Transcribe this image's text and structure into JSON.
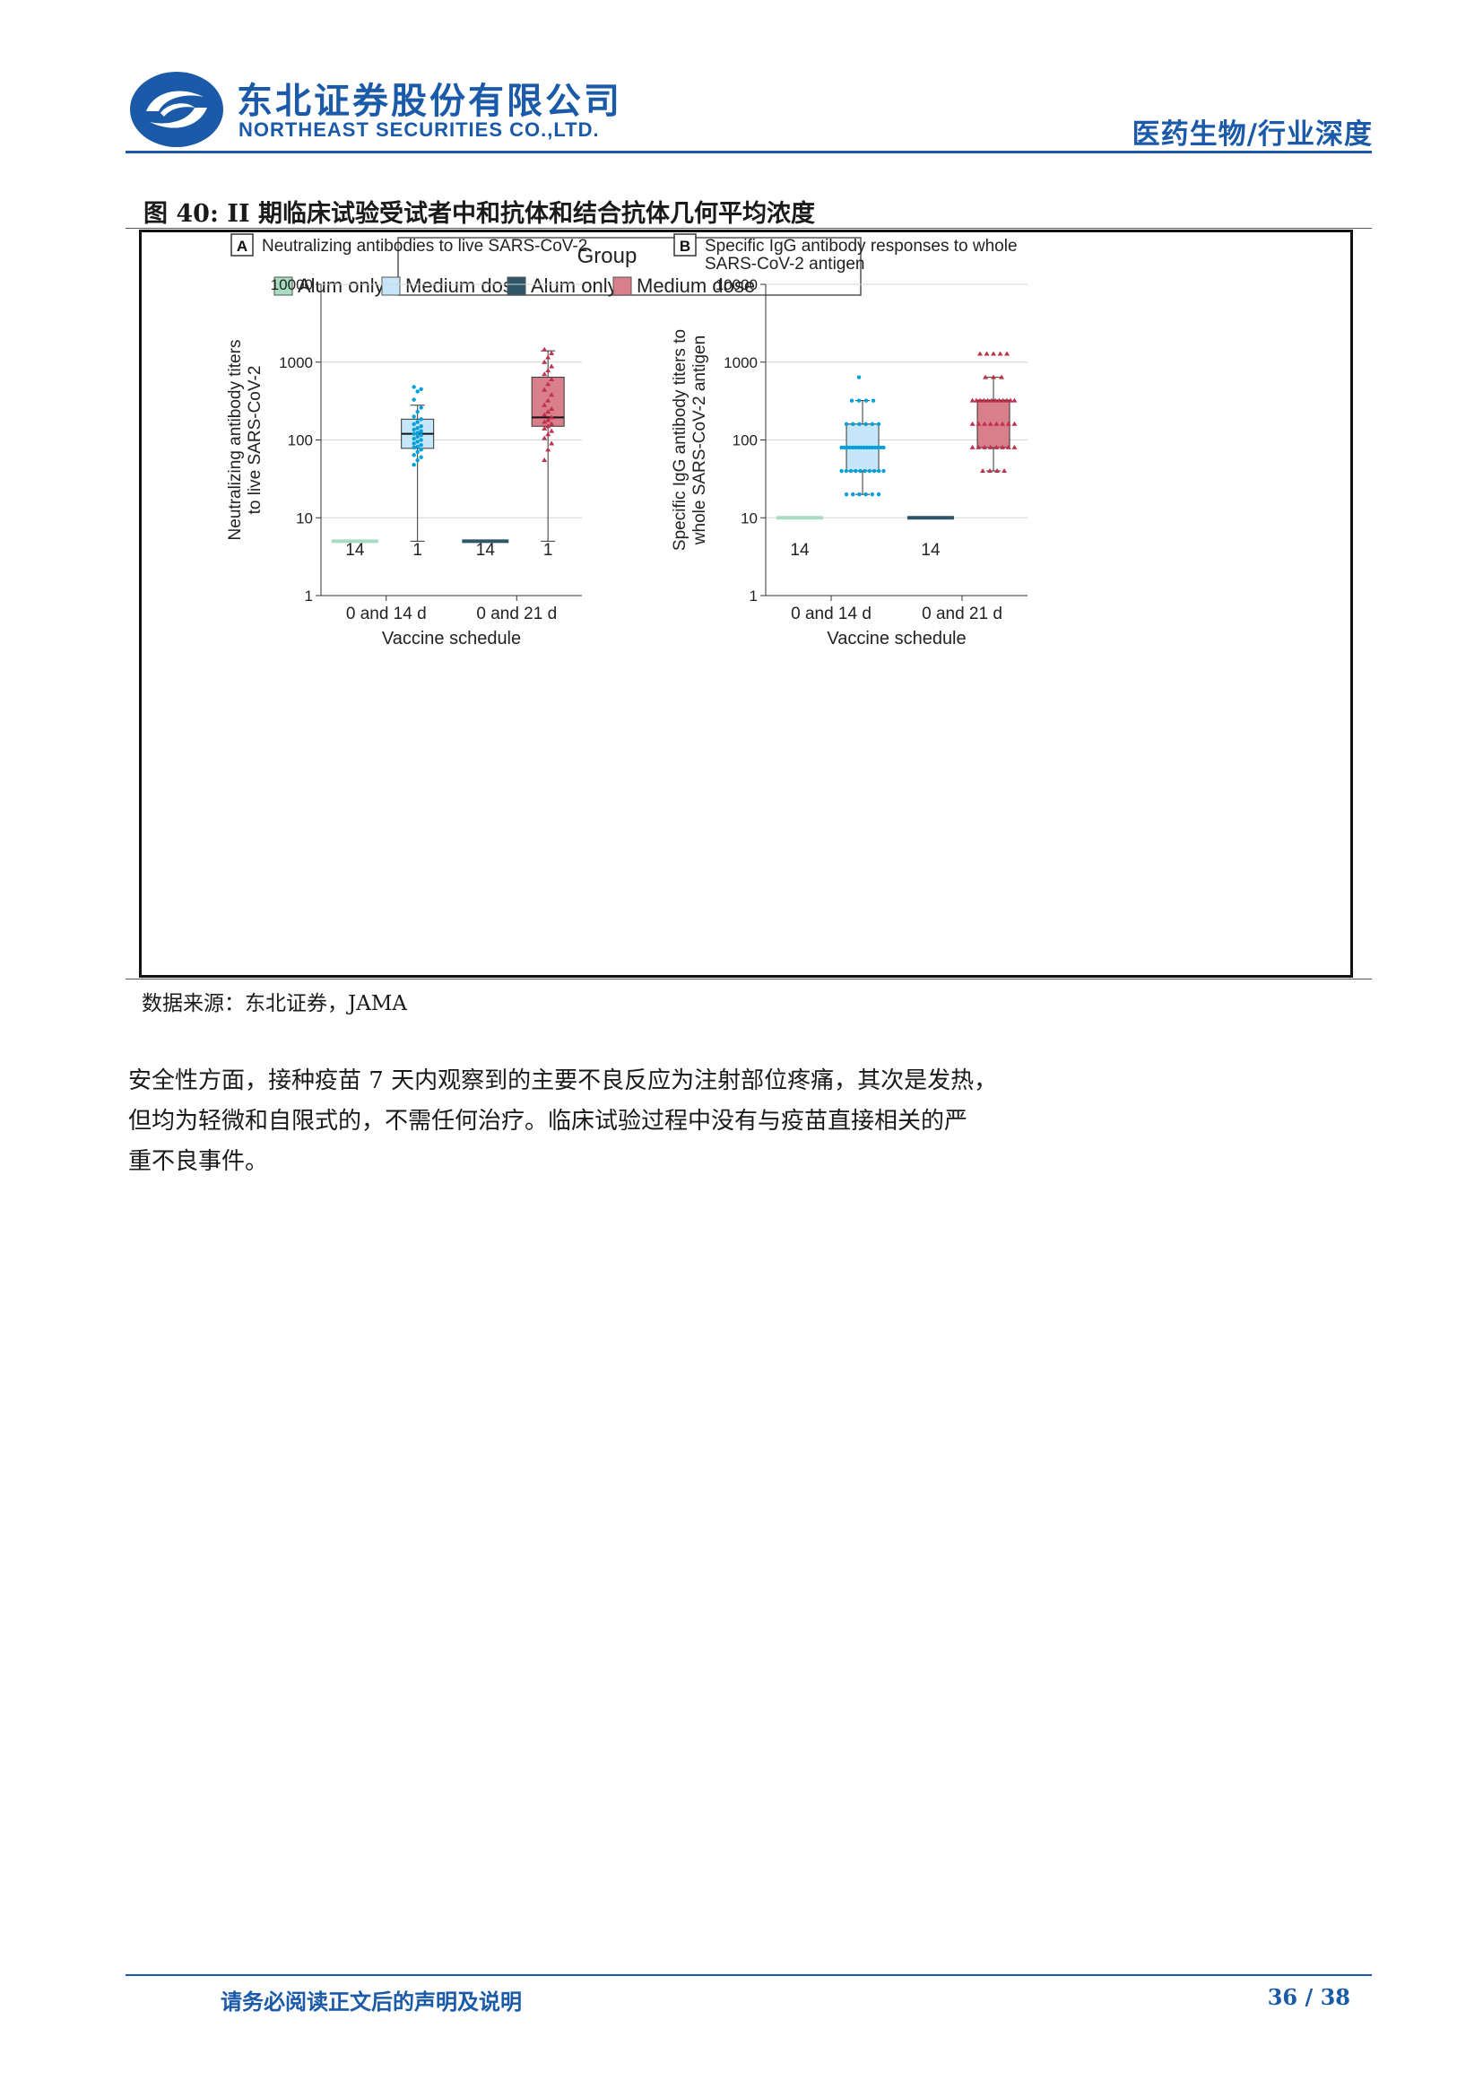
{
  "header": {
    "company_cn": "东北证券股份有限公司",
    "company_en": "NORTHEAST SECURITIES CO.,LTD.",
    "category": "医药生物/行业深度",
    "brand_color": "#1a5aa8"
  },
  "figure": {
    "caption": "图 40: II 期临床试验受试者中和抗体和结合抗体几何平均浓度",
    "source": "数据来源：东北证券，JAMA"
  },
  "chart_data": {
    "type": "box",
    "legend": {
      "title": "Group",
      "placement": "top-center",
      "entries": [
        {
          "label": "Alum only",
          "color": "#a8dcc0"
        },
        {
          "label": "Medium dose",
          "color": "#c6e6f9"
        },
        {
          "label": "Alum only",
          "color": "#2e5668"
        },
        {
          "label": "Medium dose",
          "color": "#d97f8c"
        }
      ]
    },
    "yscale": "log",
    "panels": [
      {
        "letter": "A",
        "title": [
          "Neutralizing antibodies to live SARS-CoV-2"
        ],
        "ylabel": [
          "Neutralizing antibody titers",
          "to live SARS-CoV-2"
        ],
        "xlabel": "Vaccine schedule",
        "ylim": [
          1,
          10000
        ],
        "yticks": [
          "1",
          "10",
          "100",
          "1000",
          "10000"
        ],
        "categories": [
          "0 and 14 d",
          "0 and 21 d"
        ],
        "groups": [
          {
            "category": "0 and 14 d",
            "group": "Alum only",
            "flat": 5,
            "count": "14",
            "color": "#a8dcc0",
            "stroke": "#a8dcc0"
          },
          {
            "category": "0 and 14 d",
            "group": "Medium dose",
            "q1": 78,
            "median": 120,
            "q3": 185,
            "whisker_low": 5,
            "whisker_high": 280,
            "count": "1",
            "color": "#c6e6f9",
            "stroke": "#00a0d8",
            "points": [
              48,
              55,
              60,
              64,
              70,
              75,
              80,
              82,
              86,
              90,
              95,
              100,
              104,
              110,
              115,
              120,
              124,
              130,
              136,
              142,
              150,
              160,
              170,
              185,
              200,
              230,
              260,
              330,
              420,
              450,
              480
            ]
          },
          {
            "category": "0 and 21 d",
            "group": "Alum only",
            "flat": 5,
            "count": "14",
            "color": "#2e5668",
            "stroke": "#2e5668"
          },
          {
            "category": "0 and 21 d",
            "group": "Medium dose",
            "q1": 150,
            "median": 195,
            "q3": 640,
            "whisker_low": 5,
            "whisker_high": 1400,
            "count": "1",
            "color": "#d97f8c",
            "stroke": "#c0304a",
            "points": [
              55,
              75,
              90,
              105,
              118,
              130,
              140,
              150,
              160,
              170,
              180,
              195,
              210,
              230,
              250,
              280,
              320,
              380,
              440,
              520,
              600,
              700,
              780,
              880,
              1000,
              1150,
              1300,
              1450
            ]
          }
        ]
      },
      {
        "letter": "B",
        "title": [
          "Specific IgG antibody responses to whole",
          "SARS-CoV-2 antigen"
        ],
        "ylabel": [
          "Specific IgG antibody titers to",
          "whole SARS-CoV-2 antigen"
        ],
        "xlabel": "Vaccine schedule",
        "ylim": [
          1,
          10000
        ],
        "yticks": [
          "1",
          "10",
          "100",
          "1000",
          "10000"
        ],
        "categories": [
          "0 and 14 d",
          "0 and 21 d"
        ],
        "groups": [
          {
            "category": "0 and 14 d",
            "group": "Alum only",
            "flat": 10,
            "count": "14",
            "color": "#a8dcc0",
            "stroke": "#a8dcc0"
          },
          {
            "category": "0 and 14 d",
            "group": "Medium dose",
            "q1": 40,
            "median": 80,
            "q3": 160,
            "whisker_low": 20,
            "whisker_high": 320,
            "count": "",
            "color": "#c6e6f9",
            "stroke": "#00a0d8",
            "points": [
              20,
              20,
              20,
              20,
              20,
              20,
              40,
              40,
              40,
              40,
              40,
              40,
              40,
              40,
              40,
              40,
              80,
              80,
              80,
              80,
              80,
              80,
              80,
              80,
              80,
              80,
              80,
              80,
              80,
              80,
              80,
              80,
              160,
              160,
              160,
              160,
              160,
              160,
              320,
              320,
              320,
              320,
              640
            ]
          },
          {
            "category": "0 and 21 d",
            "group": "Alum only",
            "flat": 10,
            "count": "14",
            "color": "#2e5668",
            "stroke": "#2e5668"
          },
          {
            "category": "0 and 21 d",
            "group": "Medium dose",
            "q1": 80,
            "median": 320,
            "q3": 320,
            "whisker_low": 40,
            "whisker_high": 640,
            "count": "",
            "color": "#d97f8c",
            "stroke": "#c0304a",
            "points": [
              40,
              40,
              40,
              40,
              80,
              80,
              80,
              80,
              80,
              80,
              80,
              80,
              160,
              160,
              160,
              160,
              160,
              160,
              160,
              160,
              320,
              320,
              320,
              320,
              320,
              320,
              320,
              320,
              320,
              320,
              320,
              320,
              640,
              640,
              640,
              1280,
              1280,
              1280,
              1280,
              1280
            ]
          }
        ]
      }
    ]
  },
  "body": {
    "paragraph_lines": [
      "安全性方面，接种疫苗 7 天内观察到的主要不良反应为注射部位疼痛，其次是发热，",
      "但均为轻微和自限式的，不需任何治疗。临床试验过程中没有与疫苗直接相关的严",
      "重不良事件。"
    ]
  },
  "footer": {
    "note": "请务必阅读正文后的声明及说明",
    "page": "36 / 38"
  }
}
